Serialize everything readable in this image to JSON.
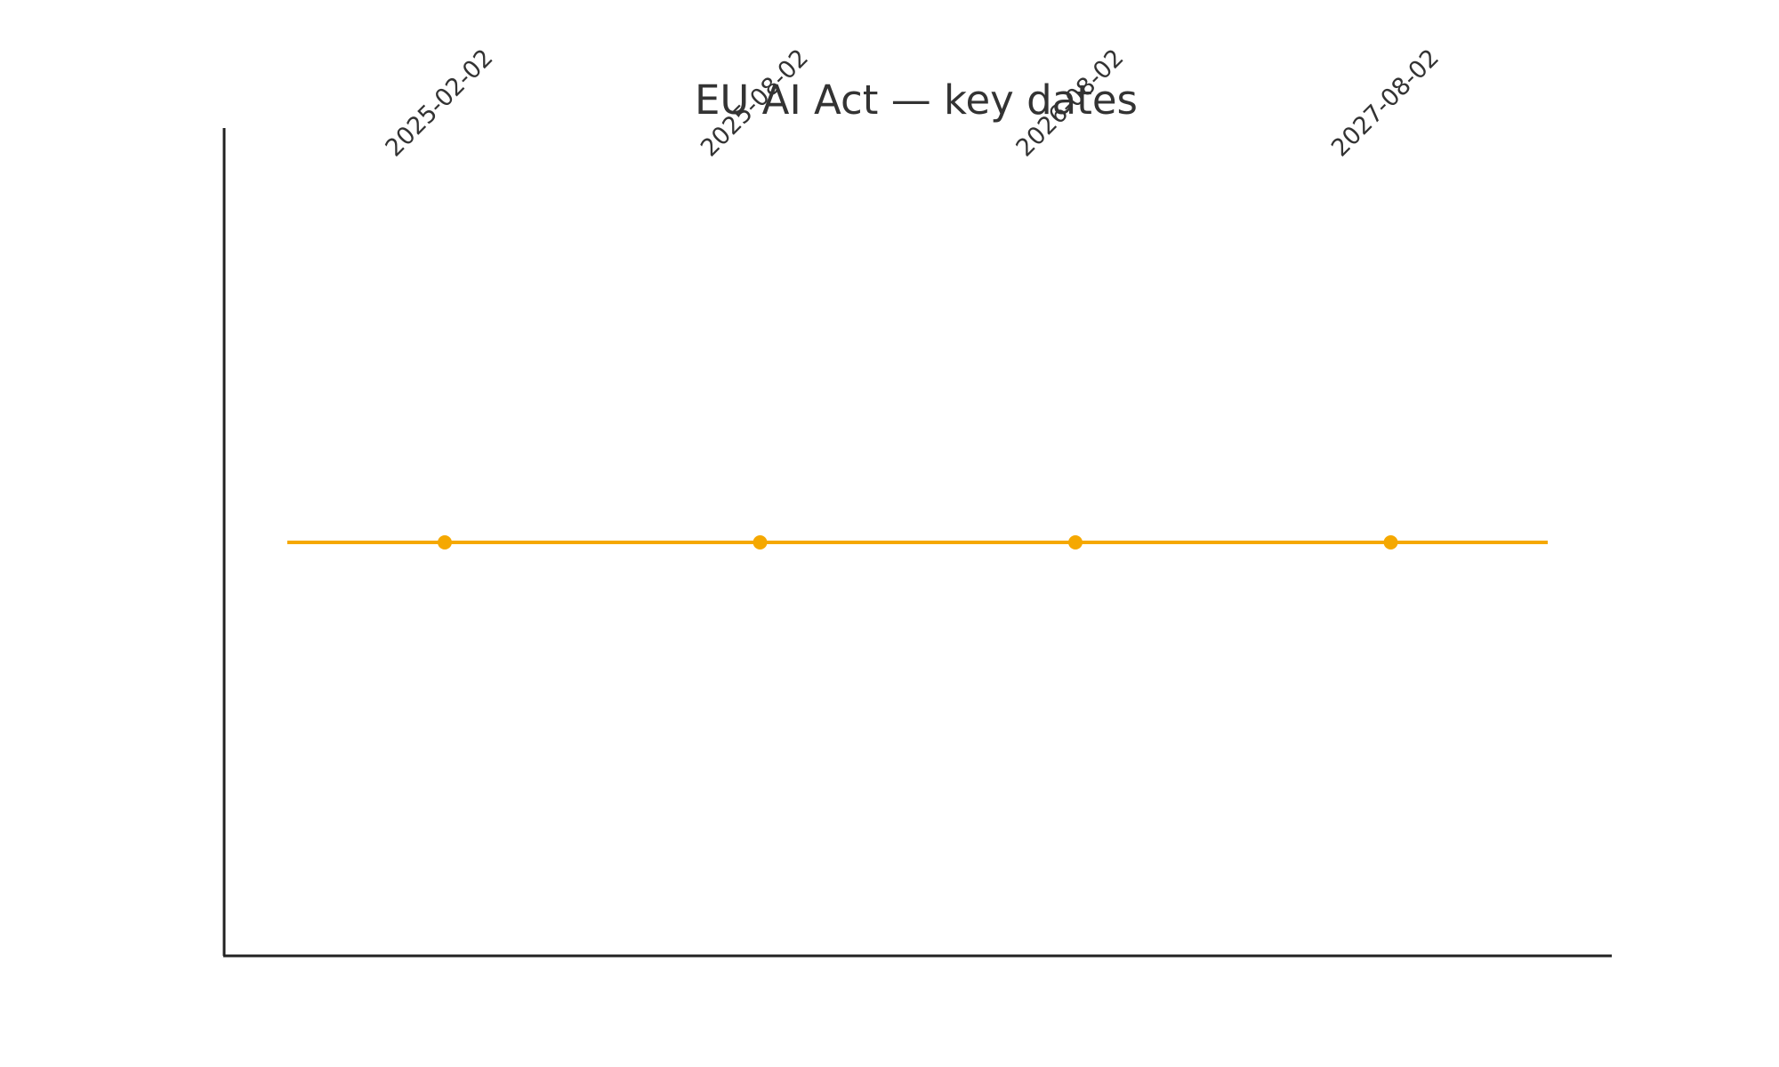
{
  "chart_data": {
    "type": "line",
    "title": "EU AI Act — key dates",
    "xlabel": "",
    "ylabel": "",
    "x": [
      "2025-02-02",
      "2025-08-02",
      "2026-08-02",
      "2027-08-02"
    ],
    "series": [
      {
        "values": [
          0,
          0,
          0,
          0
        ]
      }
    ],
    "line_color": "#f5a800",
    "axis_color": "#222222",
    "text_color": "#333333",
    "grid": false,
    "legend": "none"
  }
}
